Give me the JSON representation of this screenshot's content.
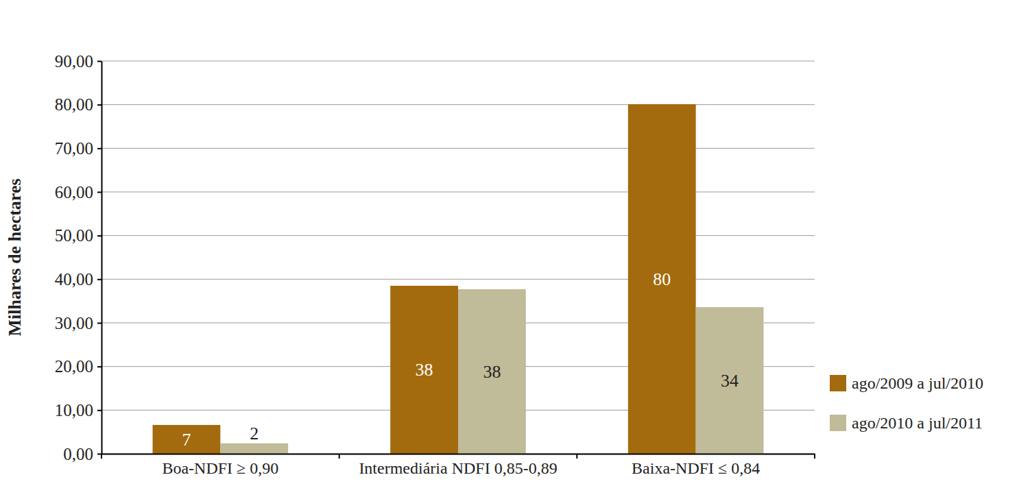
{
  "chart_data": {
    "type": "bar",
    "y_label": "Milhares de hectares",
    "categories": [
      "Boa-NDFI ≥ 0,90",
      "Intermediária NDFI 0,85-0,89",
      "Baixa-NDFI ≤ 0,84"
    ],
    "series": [
      {
        "name": "ago/2009 a jul/2010",
        "color": "#a36b0e",
        "values": [
          6.6,
          38.5,
          80.1
        ],
        "value_labels": [
          "7",
          "38",
          "80"
        ]
      },
      {
        "name": "ago/2010 a jul/2011",
        "color": "#c0bb98",
        "values": [
          2.4,
          37.7,
          33.6
        ],
        "value_labels": [
          "2",
          "38",
          "34"
        ]
      }
    ],
    "ylim": [
      0,
      90
    ],
    "yticks": [
      {
        "value": 0,
        "label": "0,00"
      },
      {
        "value": 10,
        "label": "10,00"
      },
      {
        "value": 20,
        "label": "20,00"
      },
      {
        "value": 30,
        "label": "30,00"
      },
      {
        "value": 40,
        "label": "40,00"
      },
      {
        "value": 50,
        "label": "50,00"
      },
      {
        "value": 60,
        "label": "60,00"
      },
      {
        "value": 70,
        "label": "70,00"
      },
      {
        "value": 80,
        "label": "80,00"
      },
      {
        "value": 90,
        "label": "90,00"
      }
    ],
    "grid": true,
    "data_labels": true,
    "legend": "right"
  }
}
